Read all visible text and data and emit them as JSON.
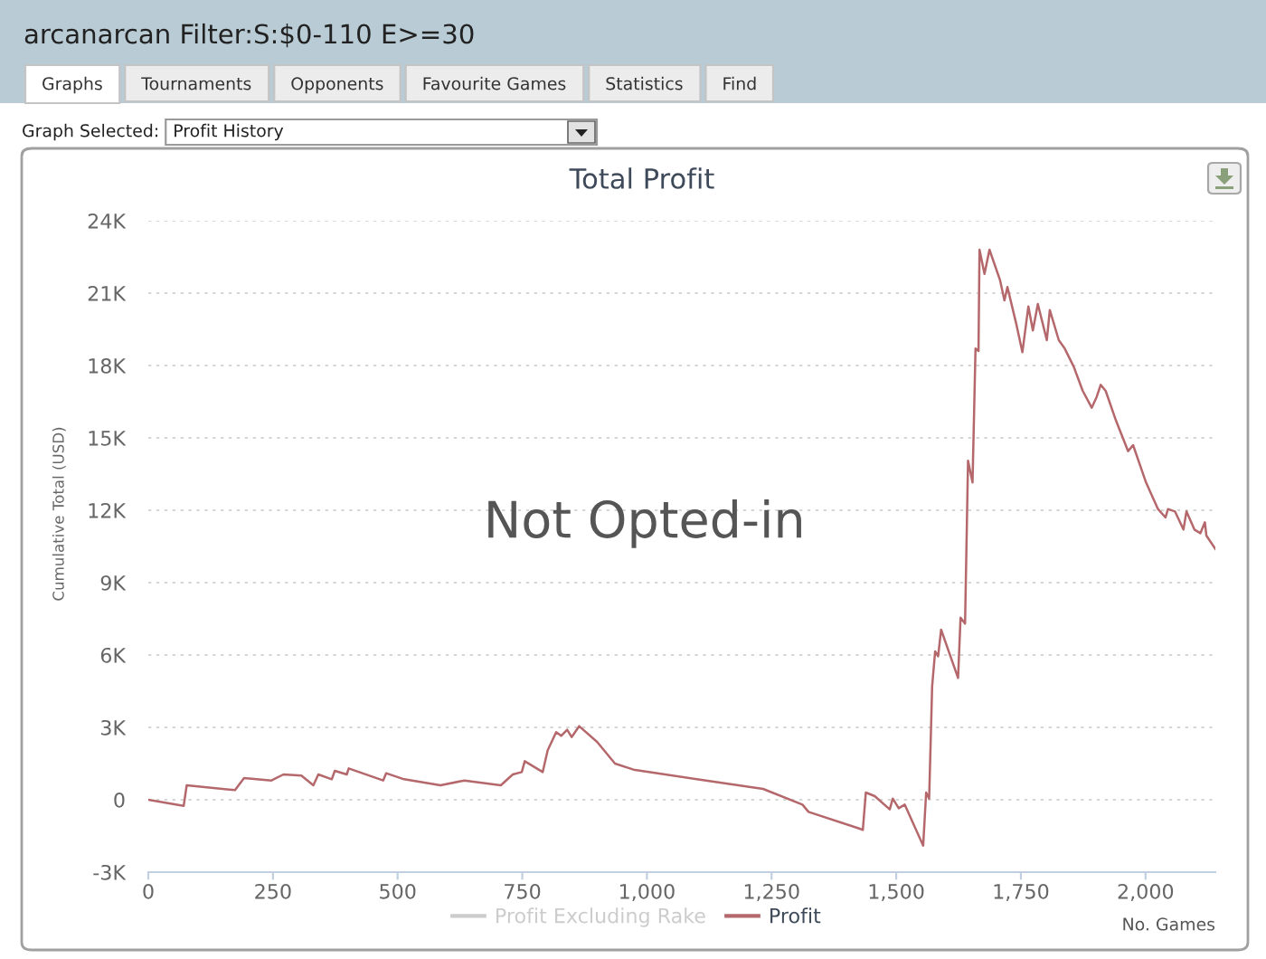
{
  "chart_data": {
    "type": "line",
    "title": "Total Profit",
    "xlabel": "No. Games",
    "ylabel": "Cumulative Total (USD)",
    "annotations": [
      "arcanarcan Filter:S:$0-110 E>=30",
      "Graphs",
      "Tournaments",
      "Opponents",
      "Favourite Games",
      "Statistics",
      "Find",
      "Graph Selected:",
      "Profit History",
      "Not Opted-in"
    ],
    "x": [
      0,
      71,
      77,
      174,
      192,
      247,
      271,
      307,
      331,
      341,
      368,
      374,
      398,
      402,
      471,
      477,
      513,
      586,
      634,
      707,
      731,
      749,
      755,
      791,
      801,
      818,
      828,
      840,
      849,
      864,
      900,
      936,
      973,
      1100,
      1233,
      1312,
      1324,
      1427,
      1433,
      1439,
      1457,
      1487,
      1493,
      1505,
      1517,
      1554,
      1560,
      1566,
      1572,
      1578,
      1584,
      1590,
      1624,
      1629,
      1638,
      1644,
      1653,
      1659,
      1665,
      1667,
      1677,
      1687,
      1708,
      1717,
      1723,
      1741,
      1753,
      1765,
      1774,
      1784,
      1802,
      1808,
      1826,
      1838,
      1856,
      1874,
      1892,
      1902,
      1910,
      1920,
      1941,
      1965,
      1975,
      2001,
      2025,
      2040,
      2045,
      2059,
      2076,
      2082,
      2098,
      2110,
      2119,
      2122,
      2140
    ],
    "series": [
      {
        "name": "Profit Excluding Rake",
        "color": "#cccccc",
        "values": [
          null,
          null,
          null,
          null,
          null,
          null,
          null,
          null,
          null,
          null,
          null,
          null,
          null,
          null,
          null,
          null,
          null,
          null,
          null,
          null,
          null,
          null,
          null,
          null,
          null,
          null,
          null,
          null,
          null,
          null,
          null,
          null,
          null,
          null,
          null,
          null,
          null,
          null,
          null,
          null,
          null,
          null,
          null,
          null,
          null,
          null,
          null,
          null,
          null,
          null,
          null,
          null,
          null,
          null,
          null,
          null,
          null,
          null,
          null,
          null,
          null,
          null,
          null,
          null,
          null,
          null,
          null,
          null,
          null,
          null,
          null,
          null,
          null,
          null,
          null,
          null,
          null,
          null,
          null,
          null,
          null,
          null,
          null,
          null,
          null,
          null,
          null,
          null,
          null,
          null,
          null,
          null,
          null,
          null,
          null
        ]
      },
      {
        "name": "Profit",
        "color": "#b5686c",
        "values": [
          0,
          -250,
          600,
          400,
          900,
          800,
          1050,
          1000,
          600,
          1050,
          850,
          1200,
          1050,
          1300,
          800,
          1100,
          850,
          600,
          800,
          600,
          1050,
          1150,
          1600,
          1150,
          2050,
          2800,
          2650,
          2900,
          2600,
          3050,
          2400,
          1500,
          1250,
          850,
          450,
          -200,
          -500,
          -1200,
          -1250,
          300,
          150,
          -400,
          50,
          -350,
          -200,
          -1900,
          300,
          50,
          4700,
          6150,
          5950,
          7050,
          5050,
          7550,
          7300,
          14050,
          13150,
          18700,
          18600,
          22800,
          21800,
          22800,
          21550,
          20700,
          21250,
          19700,
          18550,
          20450,
          19450,
          20550,
          19050,
          20300,
          19050,
          18700,
          17950,
          16950,
          16250,
          16700,
          17200,
          16950,
          15700,
          14450,
          14700,
          13150,
          12050,
          11700,
          12050,
          11950,
          11200,
          11950,
          11200,
          11050,
          11500,
          10950,
          10400
        ]
      }
    ],
    "xlim": [
      0,
      2140
    ],
    "xticks": [
      0,
      250,
      500,
      750,
      {
        "value": 1000,
        "label": "1,000"
      },
      {
        "value": 1250,
        "label": "1,250"
      },
      {
        "value": 1500,
        "label": "1,500"
      },
      {
        "value": 1750,
        "label": "1,750"
      },
      {
        "value": 2000,
        "label": "2,000"
      }
    ],
    "ylim": [
      -3000,
      24000
    ],
    "yticks": [
      {
        "value": -3000,
        "label": "-3K"
      },
      0,
      {
        "value": 3000,
        "label": "3K"
      },
      {
        "value": 6000,
        "label": "6K"
      },
      {
        "value": 9000,
        "label": "9K"
      },
      {
        "value": 12000,
        "label": "12K"
      },
      {
        "value": 15000,
        "label": "15K"
      },
      {
        "value": 18000,
        "label": "18K"
      },
      {
        "value": 21000,
        "label": "21K"
      },
      {
        "value": 24000,
        "label": "24K"
      }
    ],
    "grid": "y",
    "legend": "bottom",
    "marker": "none",
    "line_style": "solid"
  }
}
